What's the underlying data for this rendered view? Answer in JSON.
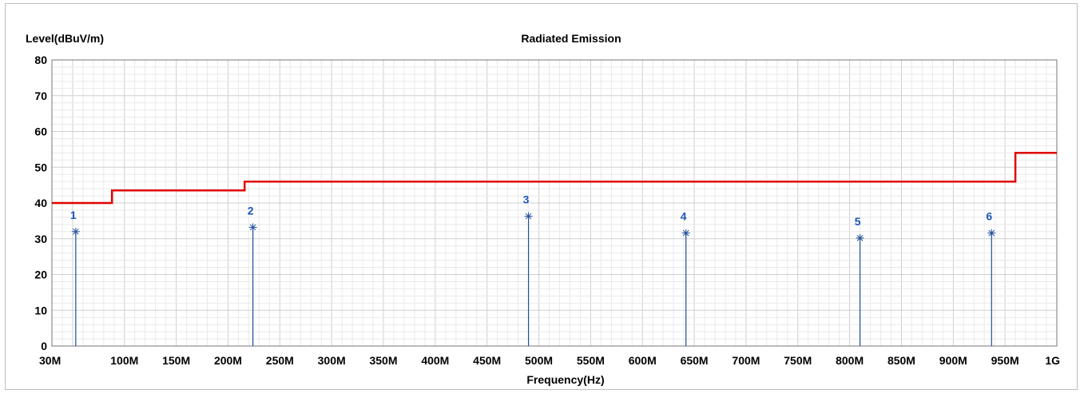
{
  "chart_data": {
    "type": "line",
    "title": "Radiated Emission",
    "ylabel": "Level(dBuV/m)",
    "xlabel": "Frequency(Hz)",
    "xlim": [
      30,
      1000
    ],
    "ylim": [
      0,
      80
    ],
    "x_ticks": [
      {
        "value": 30,
        "label": "30M"
      },
      {
        "value": 100,
        "label": "100M"
      },
      {
        "value": 150,
        "label": "150M"
      },
      {
        "value": 200,
        "label": "200M"
      },
      {
        "value": 250,
        "label": "250M"
      },
      {
        "value": 300,
        "label": "300M"
      },
      {
        "value": 350,
        "label": "350M"
      },
      {
        "value": 400,
        "label": "400M"
      },
      {
        "value": 450,
        "label": "450M"
      },
      {
        "value": 500,
        "label": "500M"
      },
      {
        "value": 550,
        "label": "550M"
      },
      {
        "value": 600,
        "label": "600M"
      },
      {
        "value": 650,
        "label": "650M"
      },
      {
        "value": 700,
        "label": "700M"
      },
      {
        "value": 750,
        "label": "750M"
      },
      {
        "value": 800,
        "label": "800M"
      },
      {
        "value": 850,
        "label": "850M"
      },
      {
        "value": 900,
        "label": "900M"
      },
      {
        "value": 950,
        "label": "950M"
      },
      {
        "value": 1000,
        "label": "1G"
      }
    ],
    "y_ticks": [
      0,
      10,
      20,
      30,
      40,
      50,
      60,
      70,
      80
    ],
    "grid": true,
    "limit_line": {
      "color": "#e00000",
      "points": [
        [
          30,
          40
        ],
        [
          88,
          40
        ],
        [
          88,
          43.5
        ],
        [
          216,
          43.5
        ],
        [
          216,
          46
        ],
        [
          960,
          46
        ],
        [
          960,
          54
        ],
        [
          1000,
          54
        ]
      ]
    },
    "markers": {
      "color": "#1f4e9c",
      "label_color": "#1d56b8",
      "points": [
        {
          "label": "1",
          "x": 53,
          "y": 32
        },
        {
          "label": "2",
          "x": 224,
          "y": 33.2
        },
        {
          "label": "3",
          "x": 490,
          "y": 36.3
        },
        {
          "label": "4",
          "x": 642,
          "y": 31.6
        },
        {
          "label": "5",
          "x": 810,
          "y": 30.2
        },
        {
          "label": "6",
          "x": 937,
          "y": 31.6
        }
      ]
    }
  }
}
